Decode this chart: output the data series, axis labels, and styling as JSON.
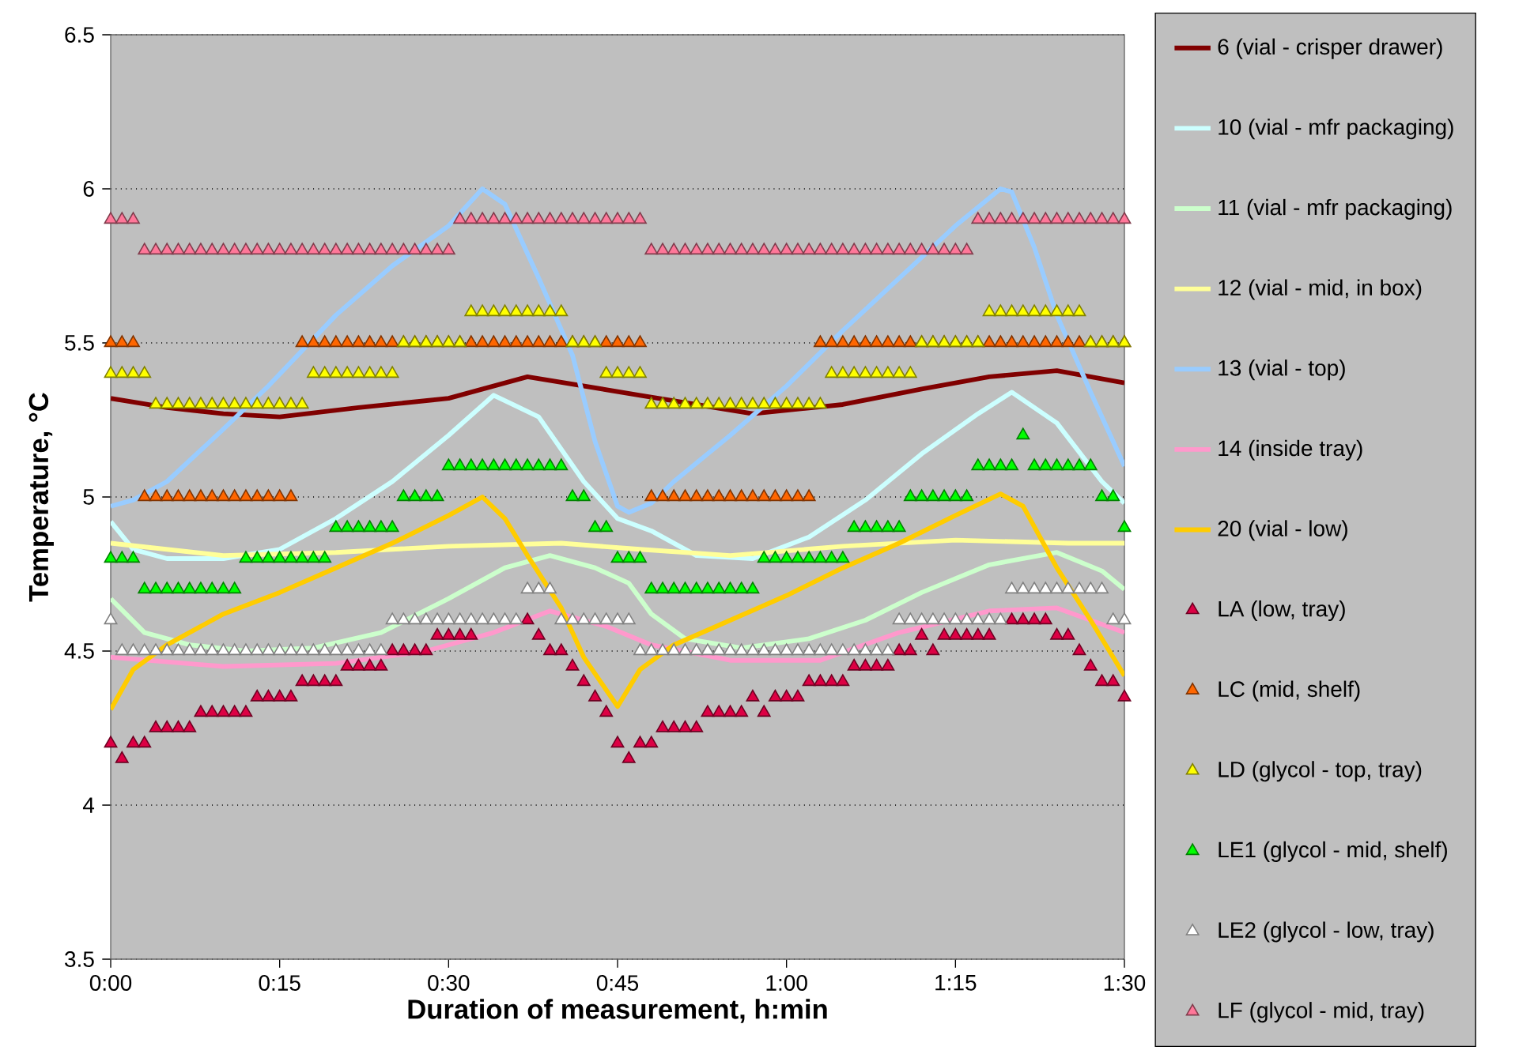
{
  "chart_data": {
    "type": "line",
    "xlabel": "Duration of measurement, h:min",
    "ylabel": "Temperature, °C",
    "xlim": [
      0,
      1.5
    ],
    "ylim": [
      3.5,
      6.5
    ],
    "xticks": [
      {
        "value": 0,
        "label": "0:00"
      },
      {
        "value": 0.25,
        "label": "0:15"
      },
      {
        "value": 0.5,
        "label": "0:30"
      },
      {
        "value": 0.75,
        "label": "0:45"
      },
      {
        "value": 1,
        "label": "1:00"
      },
      {
        "value": 1.25,
        "label": "1:15"
      },
      {
        "value": 1.5,
        "label": "1:30"
      }
    ],
    "yticks": [
      3.5,
      4,
      4.5,
      5,
      5.5,
      6,
      6.5
    ],
    "grid": "y",
    "legend": "right",
    "x": [
      0,
      0.0167,
      0.0333,
      0.05,
      0.0667,
      0.0833,
      0.1,
      0.1167,
      0.1333,
      0.15,
      0.1667,
      0.1833,
      0.2,
      0.2167,
      0.2333,
      0.25,
      0.2667,
      0.2833,
      0.3,
      0.3167,
      0.3333,
      0.35,
      0.3667,
      0.3833,
      0.4,
      0.4167,
      0.4333,
      0.45,
      0.4667,
      0.4833,
      0.5,
      0.5167,
      0.5333,
      0.55,
      0.5667,
      0.5833,
      0.6,
      0.6167,
      0.6333,
      0.65,
      0.6667,
      0.6833,
      0.7,
      0.7167,
      0.7333,
      0.75,
      0.7667,
      0.7833,
      0.8,
      0.8167,
      0.8333,
      0.85,
      0.8667,
      0.8833,
      0.9,
      0.9167,
      0.9333,
      0.95,
      0.9667,
      0.9833,
      1,
      1.0167,
      1.0333,
      1.05,
      1.0667,
      1.0833,
      1.1,
      1.1167,
      1.1333,
      1.15,
      1.1667,
      1.1833,
      1.2,
      1.2167,
      1.2333,
      1.25,
      1.2667,
      1.2833,
      1.3,
      1.3167,
      1.3333,
      1.35,
      1.3667,
      1.3833,
      1.4,
      1.4167,
      1.4333,
      1.45,
      1.4667,
      1.4833,
      1.5
    ],
    "series": [
      {
        "name": "6 (vial - crisper drawer)",
        "color": "#800000",
        "x": [
          0,
          0.0833,
          0.1667,
          0.25,
          0.3667,
          0.5,
          0.6167,
          0.7,
          0.7833,
          0.8667,
          0.95,
          1.0833,
          1.2,
          1.3,
          1.4,
          1.5
        ],
        "values": [
          5.32,
          5.29,
          5.27,
          5.26,
          5.29,
          5.32,
          5.39,
          5.36,
          5.33,
          5.3,
          5.27,
          5.3,
          5.35,
          5.39,
          5.41,
          5.37
        ]
      },
      {
        "name": "10 (vial - mfr packaging)",
        "color": "#ccffff",
        "x": [
          0,
          0.0333,
          0.0833,
          0.1667,
          0.25,
          0.3333,
          0.4167,
          0.5,
          0.5667,
          0.6333,
          0.7,
          0.75,
          0.8,
          0.8667,
          0.95,
          1.0333,
          1.1167,
          1.2,
          1.2833,
          1.3333,
          1.4,
          1.4667,
          1.5
        ],
        "values": [
          4.92,
          4.83,
          4.8,
          4.8,
          4.83,
          4.93,
          5.05,
          5.2,
          5.33,
          5.26,
          5.05,
          4.93,
          4.89,
          4.81,
          4.8,
          4.87,
          4.99,
          5.14,
          5.27,
          5.34,
          5.24,
          5.05,
          4.98
        ]
      },
      {
        "name": "11 (vial - mfr packaging)",
        "color": "#ccffcc",
        "x": [
          0,
          0.05,
          0.1167,
          0.2,
          0.3,
          0.4,
          0.5,
          0.5833,
          0.65,
          0.7167,
          0.7667,
          0.8,
          0.85,
          0.9333,
          1.0333,
          1.1167,
          1.2,
          1.3,
          1.4,
          1.4667,
          1.5
        ],
        "values": [
          4.67,
          4.56,
          4.52,
          4.5,
          4.51,
          4.56,
          4.67,
          4.77,
          4.81,
          4.77,
          4.72,
          4.62,
          4.54,
          4.51,
          4.54,
          4.6,
          4.69,
          4.78,
          4.82,
          4.76,
          4.7
        ]
      },
      {
        "name": "12 (vial - mid, in box)",
        "color": "#ffff99",
        "x": [
          0,
          0.1667,
          0.3333,
          0.5,
          0.6667,
          0.7833,
          0.9167,
          1.0833,
          1.25,
          1.4167,
          1.5
        ],
        "values": [
          4.85,
          4.81,
          4.82,
          4.84,
          4.85,
          4.83,
          4.81,
          4.84,
          4.86,
          4.85,
          4.85
        ]
      },
      {
        "name": "13 (vial - top)",
        "color": "#99ccff",
        "x": [
          0,
          0.0333,
          0.0833,
          0.1667,
          0.2333,
          0.3333,
          0.4167,
          0.5,
          0.55,
          0.5833,
          0.6333,
          0.6833,
          0.7167,
          0.75,
          0.7667,
          0.8,
          0.8333,
          0.9167,
          1.0,
          1.0833,
          1.1667,
          1.25,
          1.3167,
          1.3333,
          1.3667,
          1.4,
          1.45,
          1.5
        ],
        "values": [
          4.97,
          4.99,
          5.05,
          5.22,
          5.36,
          5.59,
          5.75,
          5.88,
          6.0,
          5.95,
          5.71,
          5.46,
          5.18,
          4.97,
          4.95,
          4.98,
          5.05,
          5.2,
          5.36,
          5.54,
          5.71,
          5.88,
          6.0,
          5.99,
          5.81,
          5.59,
          5.34,
          5.1
        ]
      },
      {
        "name": "14 (inside tray)",
        "color": "#ff99cc",
        "x": [
          0,
          0.1667,
          0.3333,
          0.4667,
          0.5667,
          0.65,
          0.7333,
          0.8,
          0.9167,
          1.05,
          1.1667,
          1.3,
          1.4,
          1.5
        ],
        "values": [
          4.48,
          4.45,
          4.46,
          4.5,
          4.56,
          4.63,
          4.58,
          4.52,
          4.47,
          4.47,
          4.56,
          4.63,
          4.64,
          4.56
        ]
      },
      {
        "name": "20 (vial - low)",
        "color": "#ffcc00",
        "x": [
          0,
          0.0333,
          0.0833,
          0.1667,
          0.25,
          0.3333,
          0.4167,
          0.5,
          0.55,
          0.5833,
          0.6167,
          0.6667,
          0.7,
          0.75,
          0.7833,
          0.8333,
          0.9167,
          1.0,
          1.0833,
          1.1667,
          1.25,
          1.3167,
          1.35,
          1.4,
          1.45,
          1.4833,
          1.5
        ],
        "values": [
          4.31,
          4.44,
          4.52,
          4.62,
          4.69,
          4.77,
          4.85,
          4.94,
          5.0,
          4.93,
          4.81,
          4.64,
          4.48,
          4.32,
          4.44,
          4.52,
          4.6,
          4.68,
          4.77,
          4.85,
          4.94,
          5.01,
          4.97,
          4.77,
          4.6,
          4.48,
          4.42
        ]
      },
      {
        "name": "LA (low, tray)",
        "type": "scatter",
        "marker": "triangle",
        "color": "#dd0044",
        "values": [
          4.2,
          4.15,
          4.2,
          4.2,
          4.25,
          4.25,
          4.25,
          4.25,
          4.3,
          4.3,
          4.3,
          4.3,
          4.3,
          4.35,
          4.35,
          4.35,
          4.35,
          4.4,
          4.4,
          4.4,
          4.4,
          4.45,
          4.45,
          4.45,
          4.45,
          4.5,
          4.5,
          4.5,
          4.5,
          4.55,
          4.55,
          4.55,
          4.55,
          null,
          null,
          null,
          null,
          4.6,
          4.55,
          4.5,
          4.5,
          4.45,
          4.4,
          4.35,
          4.3,
          4.2,
          4.15,
          4.2,
          4.2,
          4.25,
          4.25,
          4.25,
          4.25,
          4.3,
          4.3,
          4.3,
          4.3,
          4.35,
          4.3,
          4.35,
          4.35,
          4.35,
          4.4,
          4.4,
          4.4,
          4.4,
          4.45,
          4.45,
          4.45,
          4.45,
          4.5,
          4.5,
          4.55,
          4.5,
          4.55,
          4.55,
          4.55,
          4.55,
          4.55,
          null,
          4.6,
          4.6,
          4.6,
          4.6,
          4.55,
          4.55,
          4.5,
          4.45,
          4.4,
          4.4,
          4.35
        ]
      },
      {
        "name": "LC (mid, shelf)",
        "type": "scatter",
        "marker": "triangle",
        "color": "#ff6600",
        "values": [
          5.5,
          5.5,
          5.5,
          5,
          5,
          5,
          5,
          5,
          5,
          5,
          5,
          5,
          5,
          5,
          5,
          5,
          5,
          5.5,
          5.5,
          5.5,
          5.5,
          5.5,
          5.5,
          5.5,
          5.5,
          5.5,
          5.5,
          5.5,
          5.5,
          5.5,
          5.5,
          5.5,
          5.5,
          5.5,
          5.5,
          5.5,
          5.5,
          5.5,
          5.5,
          5.5,
          5.5,
          5.5,
          5.5,
          5.5,
          5.5,
          5.5,
          5.5,
          5.5,
          5,
          5,
          5,
          5,
          5,
          5,
          5,
          5,
          5,
          5,
          5,
          5,
          5,
          5,
          5,
          5.5,
          5.5,
          5.5,
          5.5,
          5.5,
          5.5,
          5.5,
          5.5,
          5.5,
          5.5,
          5.5,
          5.5,
          5.5,
          5.5,
          5.5,
          5.5,
          5.5,
          5.5,
          5.5,
          5.5,
          5.5,
          5.5,
          5.5,
          5.5,
          5.5,
          5.5,
          5.5,
          5.5
        ]
      },
      {
        "name": "LD (glycol - top, tray)",
        "type": "scatter",
        "marker": "triangle",
        "color": "#ffff00",
        "values": [
          5.4,
          5.4,
          5.4,
          5.4,
          5.3,
          5.3,
          5.3,
          5.3,
          5.3,
          5.3,
          5.3,
          5.3,
          5.3,
          5.3,
          5.3,
          5.3,
          5.3,
          5.3,
          5.4,
          5.4,
          5.4,
          5.4,
          5.4,
          5.4,
          5.4,
          5.4,
          5.5,
          5.5,
          5.5,
          5.5,
          5.5,
          5.5,
          5.6,
          5.6,
          5.6,
          5.6,
          5.6,
          5.6,
          5.6,
          5.6,
          5.6,
          5.5,
          5.5,
          5.5,
          5.4,
          5.4,
          5.4,
          5.4,
          5.3,
          5.3,
          5.3,
          5.3,
          5.3,
          5.3,
          5.3,
          5.3,
          5.3,
          5.3,
          5.3,
          5.3,
          5.3,
          5.3,
          5.3,
          5.3,
          5.4,
          5.4,
          5.4,
          5.4,
          5.4,
          5.4,
          5.4,
          5.4,
          5.5,
          5.5,
          5.5,
          5.5,
          5.5,
          5.5,
          5.6,
          5.6,
          5.6,
          5.6,
          5.6,
          5.6,
          5.6,
          5.6,
          5.6,
          5.5,
          5.5,
          5.5,
          5.5
        ]
      },
      {
        "name": "LE1 (glycol - mid, shelf)",
        "type": "scatter",
        "marker": "triangle",
        "color": "#00ff00",
        "values": [
          4.8,
          4.8,
          4.8,
          4.7,
          4.7,
          4.7,
          4.7,
          4.7,
          4.7,
          4.7,
          4.7,
          4.7,
          4.8,
          4.8,
          4.8,
          4.8,
          4.8,
          4.8,
          4.8,
          4.8,
          4.9,
          4.9,
          4.9,
          4.9,
          4.9,
          4.9,
          5.0,
          5.0,
          5.0,
          5.0,
          5.1,
          5.1,
          5.1,
          5.1,
          5.1,
          5.1,
          5.1,
          5.1,
          5.1,
          5.1,
          5.1,
          5.0,
          5.0,
          4.9,
          4.9,
          4.8,
          4.8,
          4.8,
          4.7,
          4.7,
          4.7,
          4.7,
          4.7,
          4.7,
          4.7,
          4.7,
          4.7,
          4.7,
          4.8,
          4.8,
          4.8,
          4.8,
          4.8,
          4.8,
          4.8,
          4.8,
          4.9,
          4.9,
          4.9,
          4.9,
          4.9,
          5.0,
          5.0,
          5.0,
          5.0,
          5.0,
          5.0,
          5.1,
          5.1,
          5.1,
          5.1,
          5.2,
          5.1,
          5.1,
          5.1,
          5.1,
          5.1,
          5.1,
          5.0,
          5.0,
          4.9
        ]
      },
      {
        "name": "LE2 (glycol - low, tray)",
        "type": "scatter",
        "marker": "triangle",
        "color": "#ffffff",
        "values": [
          4.6,
          4.5,
          4.5,
          4.5,
          4.5,
          4.5,
          4.5,
          4.5,
          4.5,
          4.5,
          4.5,
          4.5,
          4.5,
          4.5,
          4.5,
          4.5,
          4.5,
          4.5,
          4.5,
          4.5,
          4.5,
          4.5,
          4.5,
          4.5,
          4.5,
          4.6,
          4.6,
          4.6,
          4.6,
          4.6,
          4.6,
          4.6,
          4.6,
          4.6,
          4.6,
          4.6,
          4.6,
          4.7,
          4.7,
          4.7,
          4.6,
          4.6,
          4.6,
          4.6,
          4.6,
          4.6,
          4.6,
          4.5,
          4.5,
          4.5,
          4.5,
          4.5,
          4.5,
          4.5,
          4.5,
          4.5,
          4.5,
          4.5,
          4.5,
          4.5,
          4.5,
          4.5,
          4.5,
          4.5,
          4.5,
          4.5,
          4.5,
          4.5,
          4.5,
          4.5,
          4.6,
          4.6,
          4.6,
          4.6,
          4.6,
          4.6,
          4.6,
          4.6,
          4.6,
          4.6,
          4.7,
          4.7,
          4.7,
          4.7,
          4.7,
          4.7,
          4.7,
          4.7,
          4.7,
          4.6,
          4.6
        ]
      },
      {
        "name": "LF (glycol - mid, tray)",
        "type": "scatter",
        "marker": "triangle",
        "color": "#ff7799",
        "values": [
          5.9,
          5.9,
          5.9,
          5.8,
          5.8,
          5.8,
          5.8,
          5.8,
          5.8,
          5.8,
          5.8,
          5.8,
          5.8,
          5.8,
          5.8,
          5.8,
          5.8,
          5.8,
          5.8,
          5.8,
          5.8,
          5.8,
          5.8,
          5.8,
          5.8,
          5.8,
          5.8,
          5.8,
          5.8,
          5.8,
          5.8,
          5.9,
          5.9,
          5.9,
          5.9,
          5.9,
          5.9,
          5.9,
          5.9,
          5.9,
          5.9,
          5.9,
          5.9,
          5.9,
          5.9,
          5.9,
          5.9,
          5.9,
          5.8,
          5.8,
          5.8,
          5.8,
          5.8,
          5.8,
          5.8,
          5.8,
          5.8,
          5.8,
          5.8,
          5.8,
          5.8,
          5.8,
          5.8,
          5.8,
          5.8,
          5.8,
          5.8,
          5.8,
          5.8,
          5.8,
          5.8,
          5.8,
          5.8,
          5.8,
          5.8,
          5.8,
          5.8,
          5.9,
          5.9,
          5.9,
          5.9,
          5.9,
          5.9,
          5.9,
          5.9,
          5.9,
          5.9,
          5.9,
          5.9,
          5.9,
          5.9
        ]
      }
    ]
  }
}
